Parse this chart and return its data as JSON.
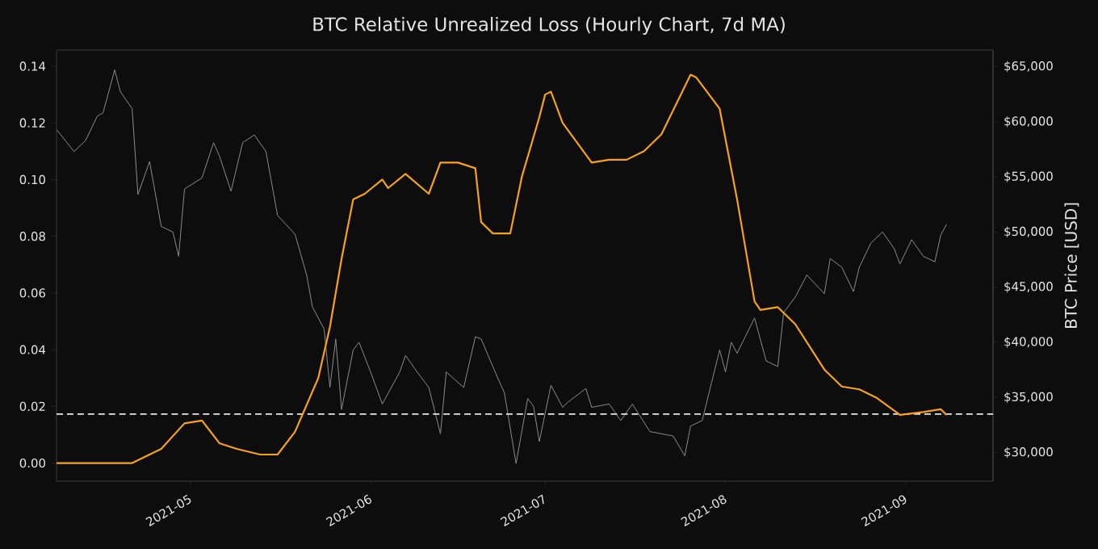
{
  "chart_data": {
    "type": "line",
    "title": "BTC Relative Unrealized Loss (Hourly Chart, 7d MA)",
    "y2label": "BTC Price [USD]",
    "xlim": [
      "2021-04-08",
      "2021-09-16"
    ],
    "xticks": [
      {
        "value": "2021-05-01",
        "label": "2021-05"
      },
      {
        "value": "2021-06-01",
        "label": "2021-06"
      },
      {
        "value": "2021-07-01",
        "label": "2021-07"
      },
      {
        "value": "2021-08-01",
        "label": "2021-08"
      },
      {
        "value": "2021-09-01",
        "label": "2021-09"
      }
    ],
    "ylim": [
      -0.0064,
      0.1457
    ],
    "yticks": [
      {
        "value": 0,
        "label": "0.00"
      },
      {
        "value": 0.02,
        "label": "0.02"
      },
      {
        "value": 0.04,
        "label": "0.04"
      },
      {
        "value": 0.06,
        "label": "0.06"
      },
      {
        "value": 0.08,
        "label": "0.08"
      },
      {
        "value": 0.1,
        "label": "0.10"
      },
      {
        "value": 0.12,
        "label": "0.12"
      },
      {
        "value": 0.14,
        "label": "0.14"
      }
    ],
    "y2lim": [
      27400,
      66500
    ],
    "y2ticks": [
      {
        "value": 30000,
        "label": "$30,000"
      },
      {
        "value": 35000,
        "label": "$35,000"
      },
      {
        "value": 40000,
        "label": "$40,000"
      },
      {
        "value": 45000,
        "label": "$45,000"
      },
      {
        "value": 50000,
        "label": "$50,000"
      },
      {
        "value": 55000,
        "label": "$55,000"
      },
      {
        "value": 60000,
        "label": "$60,000"
      },
      {
        "value": 65000,
        "label": "$65,000"
      }
    ],
    "grid": false,
    "legend": false,
    "marker": "none",
    "line_style": "solid",
    "ref_lines": [
      {
        "axis": "y",
        "value": 0.0173,
        "color": "#e8e8e8",
        "line_style": "dashed"
      }
    ],
    "series": [
      {
        "axis": "y2",
        "color": "#8c8c8c",
        "x": [
          "2021-04-08",
          "2021-04-11",
          "2021-04-13",
          "2021-04-15",
          "2021-04-16",
          "2021-04-18",
          "2021-04-19",
          "2021-04-21",
          "2021-04-22",
          "2021-04-24",
          "2021-04-26",
          "2021-04-28",
          "2021-04-29",
          "2021-04-30",
          "2021-05-03",
          "2021-05-05",
          "2021-05-06",
          "2021-05-08",
          "2021-05-10",
          "2021-05-12",
          "2021-05-14",
          "2021-05-16",
          "2021-05-19",
          "2021-05-21",
          "2021-05-22",
          "2021-05-24",
          "2021-05-25",
          "2021-05-26",
          "2021-05-27",
          "2021-05-29",
          "2021-05-30",
          "2021-06-01",
          "2021-06-03",
          "2021-06-06",
          "2021-06-07",
          "2021-06-09",
          "2021-06-11",
          "2021-06-13",
          "2021-06-14",
          "2021-06-17",
          "2021-06-19",
          "2021-06-20",
          "2021-06-22",
          "2021-06-24",
          "2021-06-26",
          "2021-06-28",
          "2021-06-29",
          "2021-06-30",
          "2021-07-02",
          "2021-07-04",
          "2021-07-05",
          "2021-07-08",
          "2021-07-09",
          "2021-07-12",
          "2021-07-14",
          "2021-07-16",
          "2021-07-19",
          "2021-07-21",
          "2021-07-23",
          "2021-07-25",
          "2021-07-26",
          "2021-07-28",
          "2021-07-31",
          "2021-08-01",
          "2021-08-02",
          "2021-08-03",
          "2021-08-06",
          "2021-08-08",
          "2021-08-10",
          "2021-08-11",
          "2021-08-13",
          "2021-08-15",
          "2021-08-18",
          "2021-08-19",
          "2021-08-21",
          "2021-08-23",
          "2021-08-24",
          "2021-08-26",
          "2021-08-28",
          "2021-08-30",
          "2021-08-31",
          "2021-09-02",
          "2021-09-04",
          "2021-09-06",
          "2021-09-07",
          "2021-09-08"
        ],
        "values": [
          59300,
          57300,
          58300,
          60500,
          60800,
          64700,
          62700,
          61200,
          53400,
          56400,
          50500,
          50000,
          47800,
          53900,
          54900,
          58100,
          56900,
          53700,
          58100,
          58800,
          57300,
          51500,
          49800,
          46100,
          43200,
          41200,
          35900,
          40300,
          33900,
          39300,
          40000,
          37300,
          34400,
          37300,
          38800,
          37300,
          35900,
          31700,
          37300,
          35900,
          40500,
          40300,
          37800,
          35400,
          29000,
          34900,
          34200,
          31000,
          36100,
          34100,
          34600,
          35800,
          34100,
          34400,
          32900,
          34400,
          31900,
          31700,
          31500,
          29700,
          32400,
          32900,
          39300,
          37300,
          40000,
          39000,
          42200,
          38300,
          37800,
          42700,
          44100,
          46100,
          44400,
          47600,
          46800,
          44600,
          46800,
          49000,
          50000,
          48500,
          47100,
          49300,
          47800,
          47300,
          49700,
          50700
        ]
      },
      {
        "color": "#f7a21b",
        "x": [
          "2021-04-08",
          "2021-04-21",
          "2021-04-26",
          "2021-04-30",
          "2021-05-03",
          "2021-05-06",
          "2021-05-09",
          "2021-05-13",
          "2021-05-16",
          "2021-05-19",
          "2021-05-23",
          "2021-05-25",
          "2021-05-27",
          "2021-05-29",
          "2021-05-31",
          "2021-06-03",
          "2021-06-04",
          "2021-06-07",
          "2021-06-11",
          "2021-06-13",
          "2021-06-16",
          "2021-06-19",
          "2021-06-20",
          "2021-06-22",
          "2021-06-25",
          "2021-06-27",
          "2021-06-30",
          "2021-07-01",
          "2021-07-02",
          "2021-07-04",
          "2021-07-09",
          "2021-07-12",
          "2021-07-15",
          "2021-07-18",
          "2021-07-21",
          "2021-07-26",
          "2021-07-27",
          "2021-07-31",
          "2021-08-03",
          "2021-08-06",
          "2021-08-07",
          "2021-08-10",
          "2021-08-13",
          "2021-08-18",
          "2021-08-21",
          "2021-08-24",
          "2021-08-27",
          "2021-08-31",
          "2021-09-04",
          "2021-09-07",
          "2021-09-08"
        ],
        "values": [
          0,
          0,
          0.005,
          0.014,
          0.015,
          0.007,
          0.005,
          0.003,
          0.003,
          0.011,
          0.03,
          0.048,
          0.072,
          0.093,
          0.095,
          0.1,
          0.097,
          0.102,
          0.095,
          0.106,
          0.106,
          0.104,
          0.085,
          0.081,
          0.081,
          0.101,
          0.122,
          0.13,
          0.131,
          0.12,
          0.106,
          0.107,
          0.107,
          0.11,
          0.116,
          0.137,
          0.136,
          0.125,
          0.093,
          0.057,
          0.054,
          0.055,
          0.049,
          0.033,
          0.027,
          0.026,
          0.023,
          0.017,
          0.018,
          0.019,
          0.017
        ]
      }
    ]
  }
}
